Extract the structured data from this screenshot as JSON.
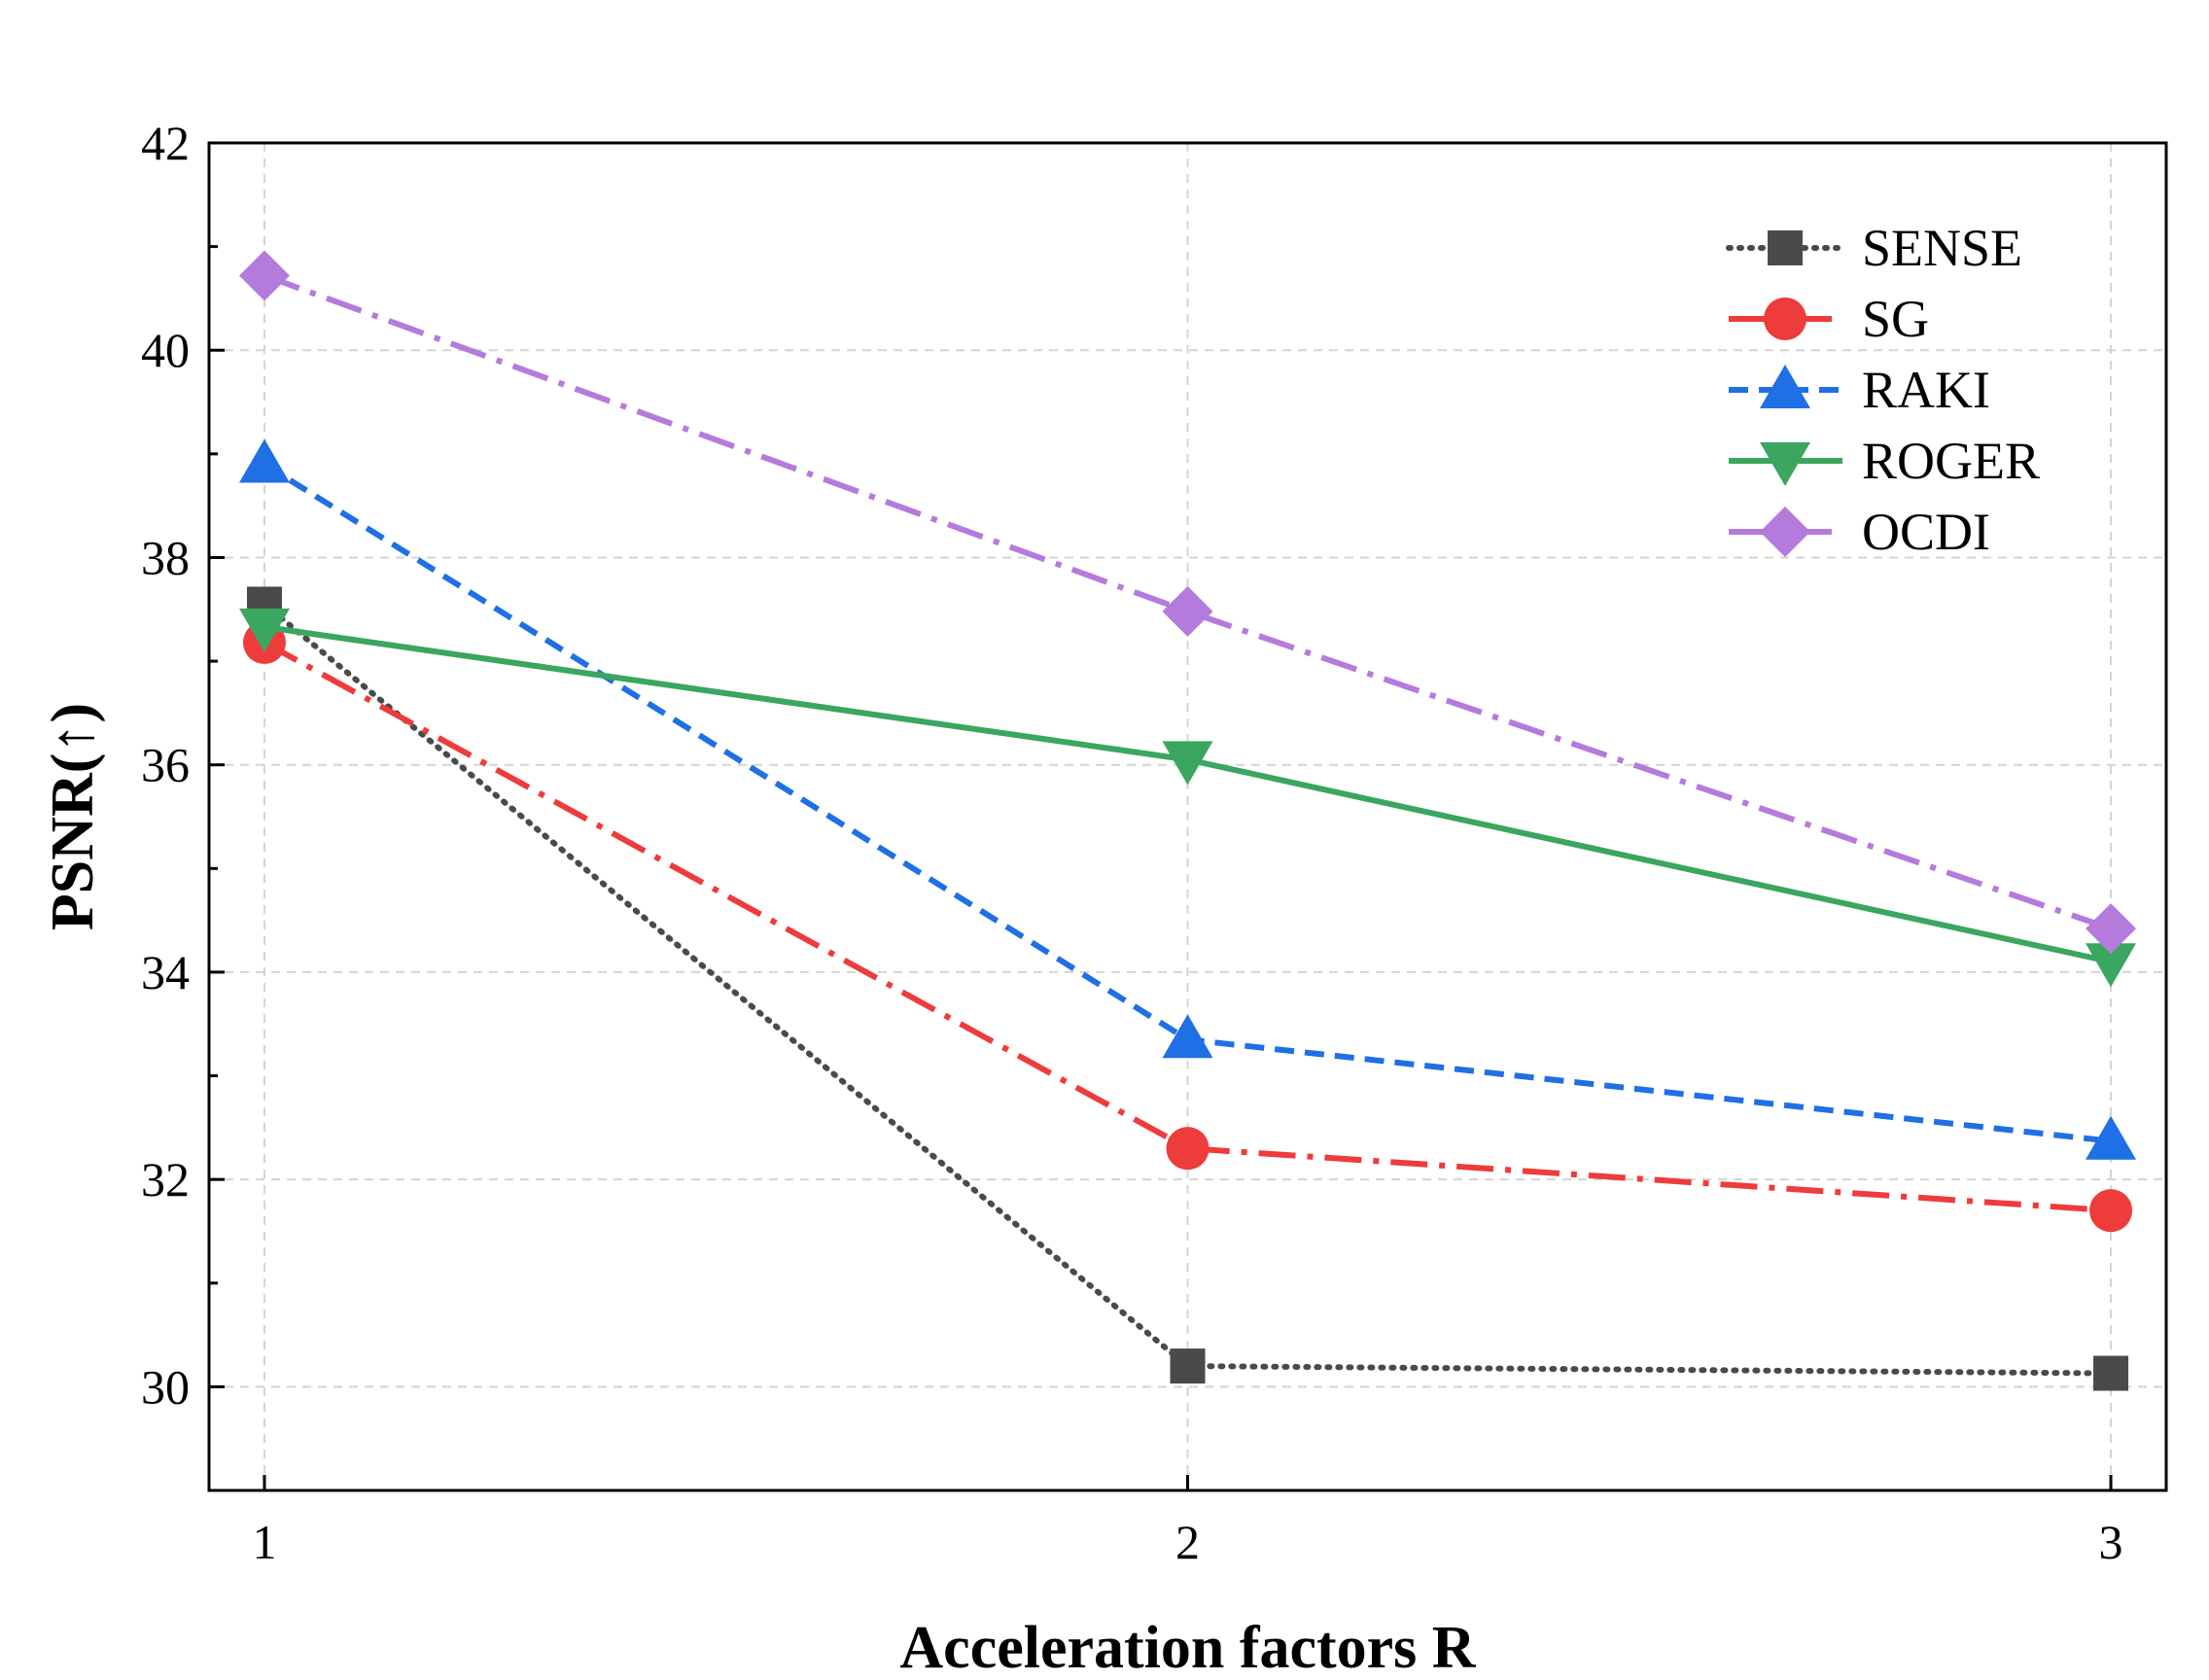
{
  "chart_data": {
    "type": "line",
    "title": "",
    "xlabel": "Acceleration factors R",
    "ylabel": "PSNR(↑)",
    "x": [
      1,
      2,
      3
    ],
    "x_tick_labels": [
      "1",
      "2",
      "3"
    ],
    "y_ticks": [
      30,
      32,
      34,
      36,
      38,
      40,
      42
    ],
    "y_tick_labels": [
      "30",
      "32",
      "34",
      "36",
      "38",
      "40",
      "42"
    ],
    "xlim": [
      0.94,
      3.06
    ],
    "ylim": [
      29,
      42
    ],
    "grid": true,
    "legend_position": "top-right",
    "series": [
      {
        "name": "SENSE",
        "values": [
          37.55,
          30.2,
          30.13
        ],
        "color": "#4a4a4a",
        "marker": "square",
        "line_style": "dotted"
      },
      {
        "name": "SG",
        "values": [
          37.18,
          32.3,
          31.7
        ],
        "color": "#ee3b3b",
        "marker": "circle",
        "line_style": "dash-dot"
      },
      {
        "name": "RAKI",
        "values": [
          38.9,
          33.35,
          32.37
        ],
        "color": "#1f6fe5",
        "marker": "triangle-up",
        "line_style": "dashed"
      },
      {
        "name": "ROGER",
        "values": [
          37.33,
          36.05,
          34.1
        ],
        "color": "#3aa65f",
        "marker": "triangle-down",
        "line_style": "solid"
      },
      {
        "name": "OCDI",
        "values": [
          40.72,
          37.48,
          34.42
        ],
        "color": "#b57bdc",
        "marker": "diamond",
        "line_style": "dash-dot"
      }
    ]
  }
}
